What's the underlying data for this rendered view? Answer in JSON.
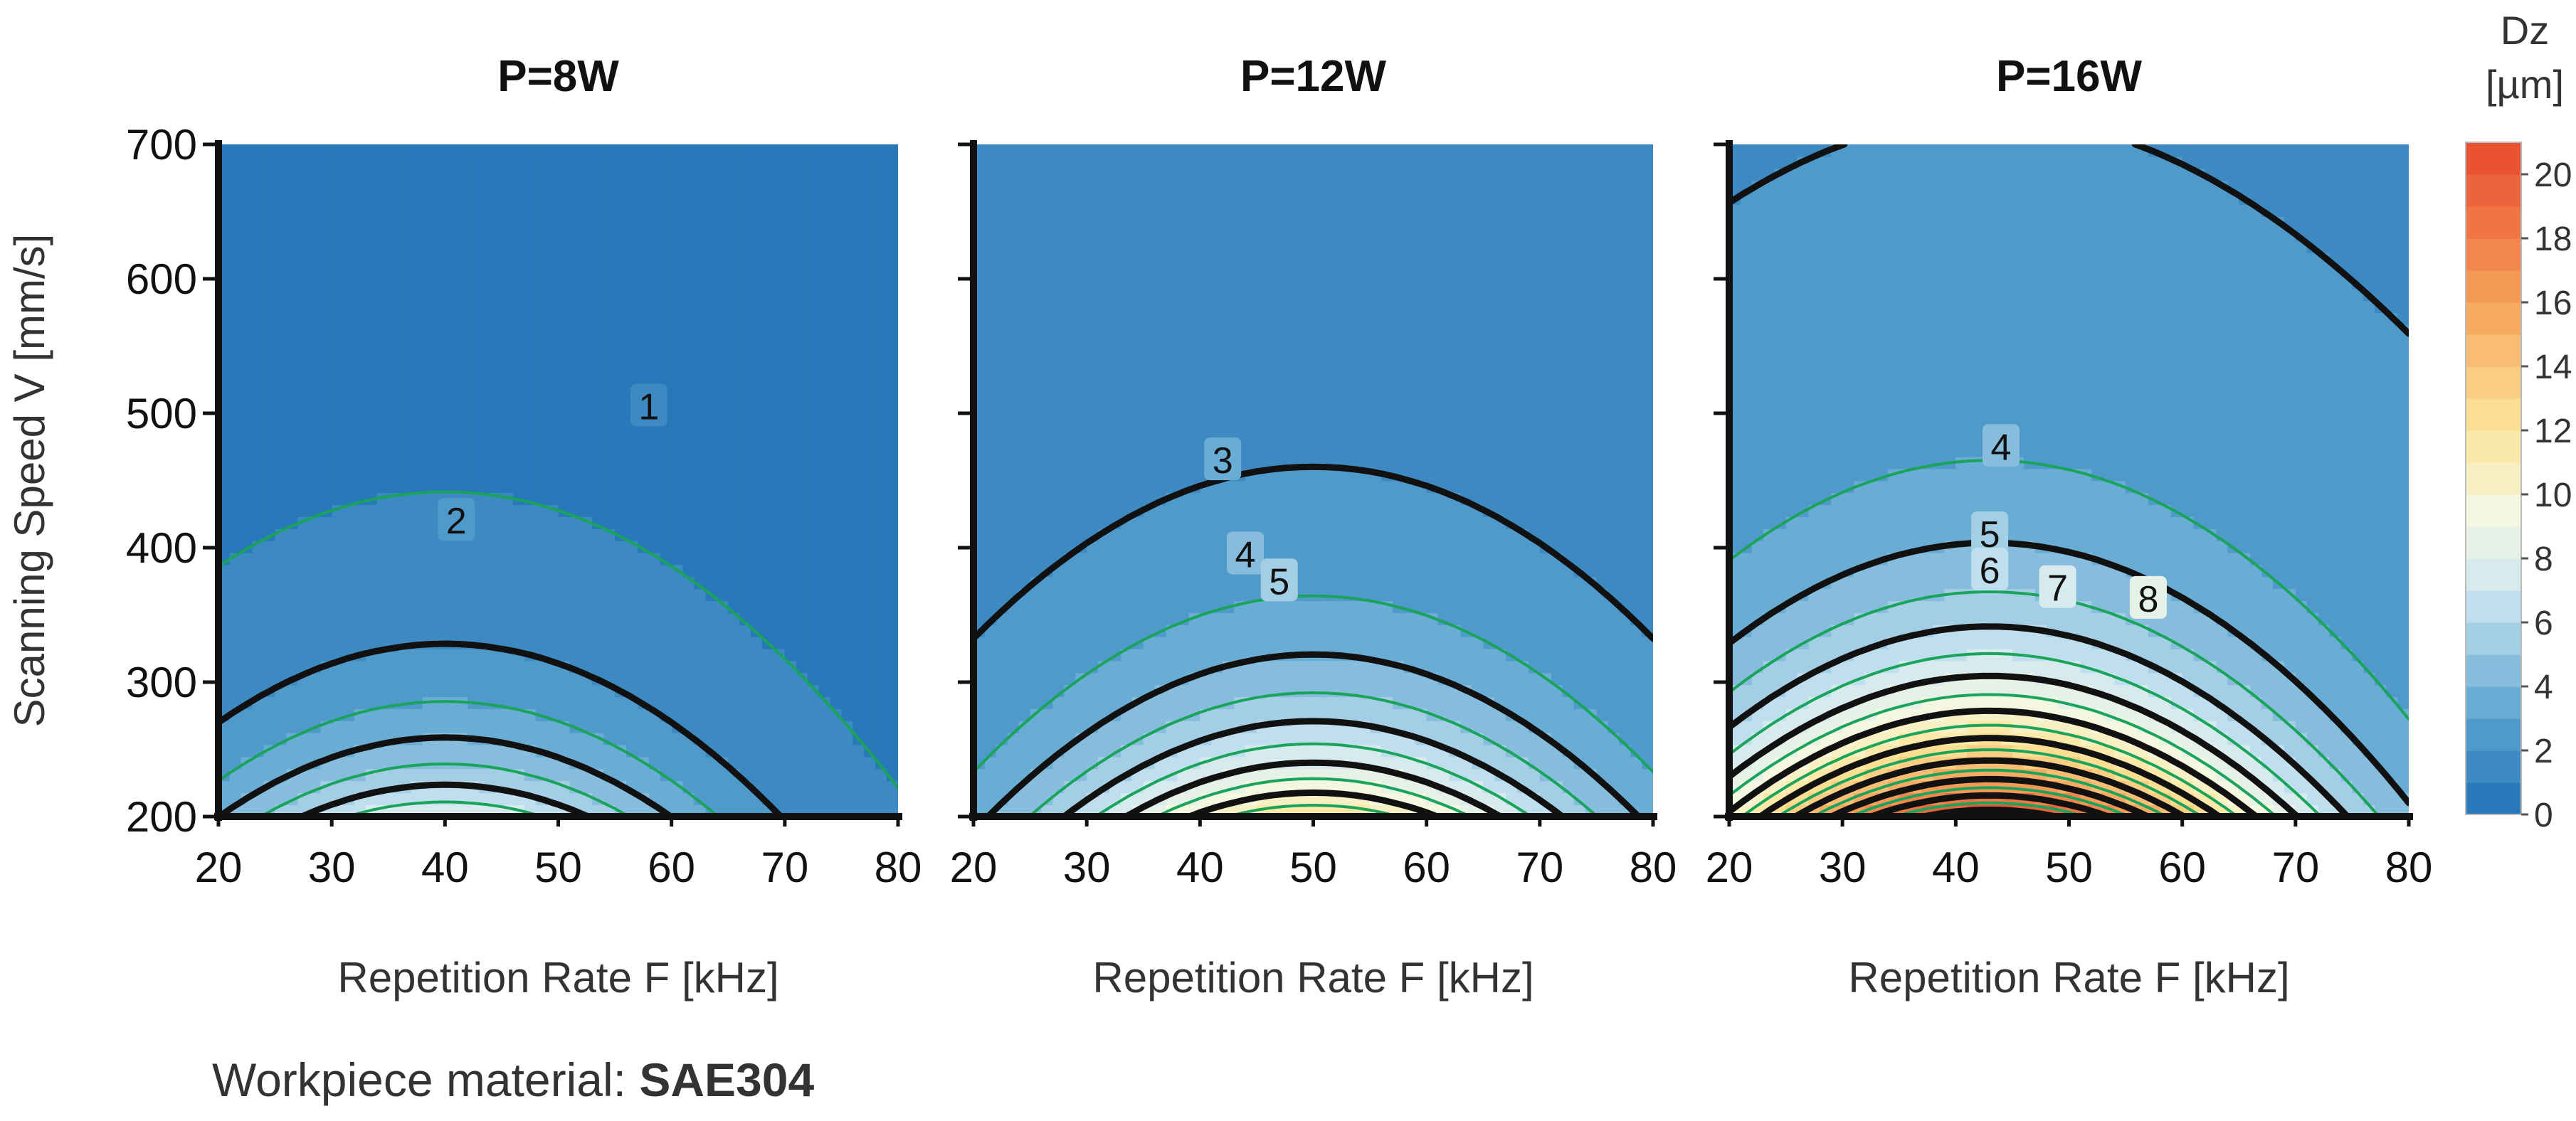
{
  "figure": {
    "caption_prefix": "Workpiece material: ",
    "caption_material": "SAE304",
    "colors": {
      "low": "#1f6fb4",
      "mid_low": "#5aa3d0",
      "light": "#cfe8f2",
      "pale": "#f5f7e0",
      "yellow": "#fbe69a",
      "orange": "#f6a25a",
      "red": "#e8492e",
      "contour_major": "#111111",
      "contour_minor": "#1aa35a"
    }
  },
  "chart_data": {
    "type": "heatmap",
    "subtype": "filled-contour",
    "shared": {
      "xlabel": "Repetition Rate F [kHz]",
      "ylabel": "Scanning Speed V [mm/s]",
      "xlim": [
        20,
        80
      ],
      "ylim": [
        200,
        700
      ],
      "x_ticks": [
        "20",
        "30",
        "40",
        "50",
        "60",
        "70",
        "80"
      ],
      "y_ticks": [
        "200",
        "300",
        "400",
        "500",
        "600",
        "700"
      ]
    },
    "colorbar": {
      "title_line1": "Dz",
      "title_line2": "[µm]",
      "range": [
        0,
        21
      ],
      "ticks": [
        "0",
        "2",
        "4",
        "6",
        "8",
        "10",
        "12",
        "14",
        "16",
        "18",
        "20"
      ],
      "levels": [
        0,
        1,
        2,
        3,
        4,
        5,
        6,
        7,
        8,
        9,
        10,
        11,
        12,
        13,
        14,
        15,
        16,
        17,
        18,
        19,
        20,
        21
      ]
    },
    "panels": [
      {
        "title": "P=8W",
        "peak": {
          "x": 40,
          "y": 200,
          "value": 8
        },
        "base": 0.8,
        "slope_y": 2.5,
        "slope_x": 0.25,
        "width_x": 28,
        "contour_labels": [
          {
            "text": "1",
            "x": 58,
            "y": 505
          },
          {
            "text": "2",
            "x": 41,
            "y": 420
          }
        ]
      },
      {
        "title": "P=12W",
        "peak": {
          "x": 50,
          "y": 200,
          "value": 12
        },
        "base": 1.6,
        "slope_y": 2.2,
        "slope_x": 0.18,
        "width_x": 30,
        "contour_labels": [
          {
            "text": "3",
            "x": 42,
            "y": 465
          },
          {
            "text": "4",
            "x": 44,
            "y": 395
          },
          {
            "text": "5",
            "x": 47,
            "y": 375
          }
        ]
      },
      {
        "title": "P=16W",
        "peak": {
          "x": 43,
          "y": 200,
          "value": 21
        },
        "base": 2.0,
        "slope_y": 2.0,
        "slope_x": 0.12,
        "width_x": 32,
        "contour_labels": [
          {
            "text": "4",
            "x": 44,
            "y": 475
          },
          {
            "text": "5",
            "x": 43,
            "y": 410
          },
          {
            "text": "6",
            "x": 43,
            "y": 383
          },
          {
            "text": "7",
            "x": 49,
            "y": 370
          },
          {
            "text": "8",
            "x": 57,
            "y": 362
          }
        ]
      }
    ]
  }
}
